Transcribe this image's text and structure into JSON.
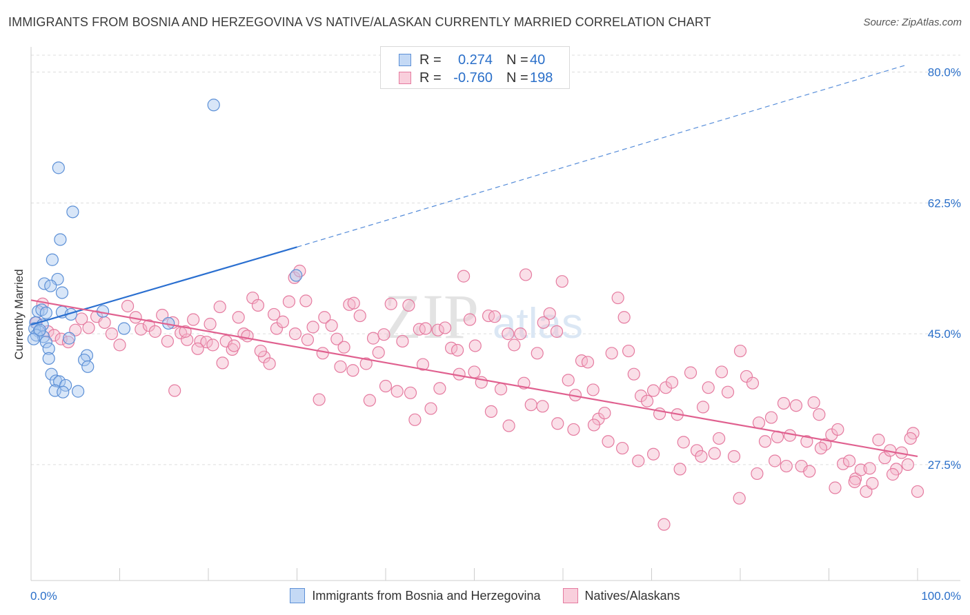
{
  "title": "IMMIGRANTS FROM BOSNIA AND HERZEGOVINA VS NATIVE/ALASKAN CURRENTLY MARRIED CORRELATION CHART",
  "source": "Source: ZipAtlas.com",
  "watermark": "ZIPatlas",
  "colors": {
    "blue_fill": "#a9c8f0",
    "blue_stroke": "#5b8fd6",
    "blue_line": "#2a6fd0",
    "pink_fill": "#f5b8cc",
    "pink_stroke": "#e57a9f",
    "pink_line": "#e0608f",
    "accent_text": "#2a6fc9"
  },
  "legend_top": [
    {
      "r_label": "R =",
      "r_value": "0.274",
      "n_label": "N =",
      "n_value": "40"
    },
    {
      "r_label": "R =",
      "r_value": "-0.760",
      "n_label": "N =",
      "n_value": "198"
    }
  ],
  "chart_data": {
    "type": "scatter",
    "title": "IMMIGRANTS FROM BOSNIA AND HERZEGOVINA VS NATIVE/ALASKAN CURRENTLY MARRIED CORRELATION CHART",
    "xlabel": "",
    "ylabel": "Currently Married",
    "xlim": [
      0,
      100
    ],
    "ylim": [
      12,
      83
    ],
    "x_tick_labels": [
      "0.0%",
      "100.0%"
    ],
    "y_ticks": [
      27.5,
      45.0,
      62.5,
      80.0
    ],
    "y_tick_labels": [
      "27.5%",
      "45.0%",
      "62.5%",
      "80.0%"
    ],
    "grid": true,
    "legend_placement": "bottom",
    "series": [
      {
        "name": "Immigrants from Bosnia and Herzegovina",
        "trend": {
          "x0": 0,
          "y0": 46.2,
          "x1": 30,
          "y1": 56.6,
          "dashed_to_x": 100,
          "dashed_to_y": 81.4
        },
        "points": [
          [
            20.6,
            75.6
          ],
          [
            3.1,
            67.2
          ],
          [
            4.7,
            61.3
          ],
          [
            3.3,
            57.6
          ],
          [
            2.4,
            54.9
          ],
          [
            3.0,
            52.3
          ],
          [
            1.5,
            51.7
          ],
          [
            2.2,
            51.4
          ],
          [
            3.5,
            50.5
          ],
          [
            0.8,
            48.0
          ],
          [
            1.2,
            48.2
          ],
          [
            1.7,
            47.8
          ],
          [
            3.5,
            47.9
          ],
          [
            4.5,
            47.6
          ],
          [
            0.5,
            46.5
          ],
          [
            1.3,
            46.2
          ],
          [
            0.4,
            45.7
          ],
          [
            0.9,
            45.3
          ],
          [
            0.6,
            44.8
          ],
          [
            1.4,
            44.6
          ],
          [
            0.3,
            44.3
          ],
          [
            1.7,
            43.9
          ],
          [
            2.0,
            43.0
          ],
          [
            4.3,
            44.4
          ],
          [
            6.3,
            42.1
          ],
          [
            2.0,
            41.7
          ],
          [
            6.0,
            41.5
          ],
          [
            6.4,
            40.6
          ],
          [
            2.3,
            39.6
          ],
          [
            2.8,
            38.7
          ],
          [
            3.2,
            38.6
          ],
          [
            3.9,
            38.1
          ],
          [
            2.7,
            37.4
          ],
          [
            3.6,
            37.2
          ],
          [
            5.3,
            37.3
          ],
          [
            8.1,
            48.0
          ],
          [
            10.5,
            45.7
          ],
          [
            15.5,
            46.4
          ],
          [
            29.9,
            52.8
          ],
          [
            1.0,
            45.5
          ]
        ]
      },
      {
        "name": "Natives/Alaskans",
        "trend": {
          "x0": 0,
          "y0": 49.5,
          "x1": 100,
          "y1": 28.6
        },
        "points": [
          [
            0.6,
            46.5
          ],
          [
            1.3,
            49.0
          ],
          [
            1.9,
            45.3
          ],
          [
            2.6,
            44.8
          ],
          [
            3.4,
            44.3
          ],
          [
            4.2,
            43.9
          ],
          [
            5.0,
            45.5
          ],
          [
            5.7,
            47.0
          ],
          [
            6.5,
            45.8
          ],
          [
            7.4,
            47.3
          ],
          [
            8.3,
            46.5
          ],
          [
            9.1,
            45.0
          ],
          [
            10.0,
            43.5
          ],
          [
            10.9,
            48.7
          ],
          [
            11.8,
            47.2
          ],
          [
            12.4,
            45.6
          ],
          [
            13.3,
            46.1
          ],
          [
            14.0,
            45.3
          ],
          [
            14.8,
            47.5
          ],
          [
            15.4,
            44.0
          ],
          [
            16.2,
            37.4
          ],
          [
            16.9,
            45.1
          ],
          [
            17.6,
            44.2
          ],
          [
            18.3,
            46.9
          ],
          [
            19.1,
            44.0
          ],
          [
            19.8,
            43.9
          ],
          [
            20.5,
            43.5
          ],
          [
            21.3,
            48.6
          ],
          [
            22.0,
            44.0
          ],
          [
            22.7,
            42.9
          ],
          [
            23.4,
            47.2
          ],
          [
            24.0,
            45.0
          ],
          [
            25.0,
            49.8
          ],
          [
            25.6,
            48.8
          ],
          [
            26.3,
            41.9
          ],
          [
            26.9,
            41.0
          ],
          [
            27.7,
            45.7
          ],
          [
            28.4,
            46.6
          ],
          [
            29.1,
            49.3
          ],
          [
            29.7,
            52.5
          ],
          [
            30.3,
            53.4
          ],
          [
            31.0,
            49.4
          ],
          [
            31.8,
            45.9
          ],
          [
            32.5,
            36.2
          ],
          [
            33.1,
            47.2
          ],
          [
            33.9,
            46.1
          ],
          [
            34.5,
            44.3
          ],
          [
            35.3,
            43.2
          ],
          [
            35.9,
            48.9
          ],
          [
            36.4,
            49.1
          ],
          [
            37.1,
            47.4
          ],
          [
            37.8,
            41.0
          ],
          [
            38.6,
            44.4
          ],
          [
            39.2,
            42.5
          ],
          [
            39.8,
            44.9
          ],
          [
            40.6,
            49.0
          ],
          [
            41.3,
            37.3
          ],
          [
            41.9,
            44.0
          ],
          [
            42.6,
            48.8
          ],
          [
            43.3,
            33.5
          ],
          [
            43.8,
            45.6
          ],
          [
            44.5,
            45.7
          ],
          [
            45.1,
            35.0
          ],
          [
            45.9,
            45.5
          ],
          [
            46.7,
            45.8
          ],
          [
            47.4,
            43.1
          ],
          [
            48.1,
            42.8
          ],
          [
            48.8,
            52.7
          ],
          [
            49.5,
            46.9
          ],
          [
            50.1,
            43.4
          ],
          [
            50.8,
            38.5
          ],
          [
            51.6,
            47.4
          ],
          [
            52.3,
            47.3
          ],
          [
            53.0,
            37.6
          ],
          [
            53.8,
            45.0
          ],
          [
            54.5,
            43.5
          ],
          [
            55.2,
            45.0
          ],
          [
            55.8,
            52.9
          ],
          [
            56.4,
            35.5
          ],
          [
            57.1,
            42.4
          ],
          [
            57.8,
            46.5
          ],
          [
            58.5,
            47.7
          ],
          [
            59.3,
            45.3
          ],
          [
            59.9,
            52.0
          ],
          [
            60.6,
            38.8
          ],
          [
            61.4,
            36.8
          ],
          [
            62.1,
            41.4
          ],
          [
            62.8,
            41.2
          ],
          [
            63.4,
            37.5
          ],
          [
            64.0,
            33.6
          ],
          [
            64.7,
            34.4
          ],
          [
            65.5,
            42.4
          ],
          [
            66.2,
            49.8
          ],
          [
            66.9,
            47.2
          ],
          [
            67.4,
            42.7
          ],
          [
            68.0,
            39.6
          ],
          [
            68.8,
            36.7
          ],
          [
            69.5,
            36.0
          ],
          [
            70.2,
            37.4
          ],
          [
            70.9,
            34.3
          ],
          [
            71.6,
            37.8
          ],
          [
            72.3,
            38.5
          ],
          [
            72.9,
            34.2
          ],
          [
            73.6,
            30.5
          ],
          [
            74.4,
            39.8
          ],
          [
            75.1,
            29.4
          ],
          [
            75.8,
            35.2
          ],
          [
            76.4,
            37.8
          ],
          [
            77.1,
            29.0
          ],
          [
            77.9,
            39.9
          ],
          [
            78.6,
            37.2
          ],
          [
            79.3,
            28.6
          ],
          [
            80.0,
            42.7
          ],
          [
            80.7,
            39.3
          ],
          [
            81.4,
            38.4
          ],
          [
            82.1,
            33.1
          ],
          [
            82.8,
            30.6
          ],
          [
            83.5,
            33.8
          ],
          [
            84.2,
            31.2
          ],
          [
            84.9,
            35.7
          ],
          [
            85.6,
            31.4
          ],
          [
            86.3,
            35.4
          ],
          [
            86.9,
            27.3
          ],
          [
            87.5,
            30.6
          ],
          [
            88.3,
            35.8
          ],
          [
            88.9,
            34.2
          ],
          [
            89.6,
            30.2
          ],
          [
            90.3,
            31.5
          ],
          [
            91.0,
            32.2
          ],
          [
            91.6,
            27.6
          ],
          [
            92.3,
            28.0
          ],
          [
            93.0,
            25.6
          ],
          [
            93.6,
            26.8
          ],
          [
            94.2,
            23.9
          ],
          [
            94.9,
            25.0
          ],
          [
            95.6,
            30.8
          ],
          [
            96.3,
            28.4
          ],
          [
            96.9,
            29.4
          ],
          [
            97.6,
            26.9
          ],
          [
            98.2,
            29.1
          ],
          [
            98.9,
            27.5
          ],
          [
            99.5,
            31.7
          ],
          [
            100.0,
            23.9
          ],
          [
            97.2,
            26.2
          ],
          [
            99.2,
            31.0
          ],
          [
            94.6,
            27.0
          ],
          [
            92.9,
            25.2
          ],
          [
            90.7,
            24.4
          ],
          [
            89.1,
            29.7
          ],
          [
            87.8,
            26.6
          ],
          [
            85.2,
            27.3
          ],
          [
            83.9,
            28.0
          ],
          [
            81.9,
            26.3
          ],
          [
            79.9,
            23.0
          ],
          [
            77.6,
            31.0
          ],
          [
            75.6,
            28.6
          ],
          [
            73.2,
            26.9
          ],
          [
            71.4,
            19.5
          ],
          [
            70.2,
            28.9
          ],
          [
            68.5,
            28.0
          ],
          [
            66.7,
            29.7
          ],
          [
            65.1,
            30.6
          ],
          [
            63.5,
            32.8
          ],
          [
            61.2,
            32.2
          ],
          [
            59.4,
            33.0
          ],
          [
            57.7,
            35.3
          ],
          [
            55.6,
            38.4
          ],
          [
            53.9,
            32.7
          ],
          [
            51.9,
            34.6
          ],
          [
            50.0,
            39.9
          ],
          [
            48.3,
            39.6
          ],
          [
            46.1,
            37.7
          ],
          [
            44.2,
            40.9
          ],
          [
            42.8,
            37.1
          ],
          [
            40.0,
            38.0
          ],
          [
            38.2,
            36.1
          ],
          [
            36.3,
            40.1
          ],
          [
            34.9,
            40.6
          ],
          [
            32.9,
            42.4
          ],
          [
            31.2,
            44.2
          ],
          [
            29.8,
            45.0
          ],
          [
            27.4,
            47.6
          ],
          [
            25.9,
            42.7
          ],
          [
            24.4,
            44.7
          ],
          [
            22.9,
            43.4
          ],
          [
            21.6,
            41.1
          ],
          [
            20.2,
            46.3
          ],
          [
            18.8,
            43.0
          ],
          [
            17.4,
            45.3
          ],
          [
            16.0,
            46.5
          ]
        ]
      }
    ]
  }
}
